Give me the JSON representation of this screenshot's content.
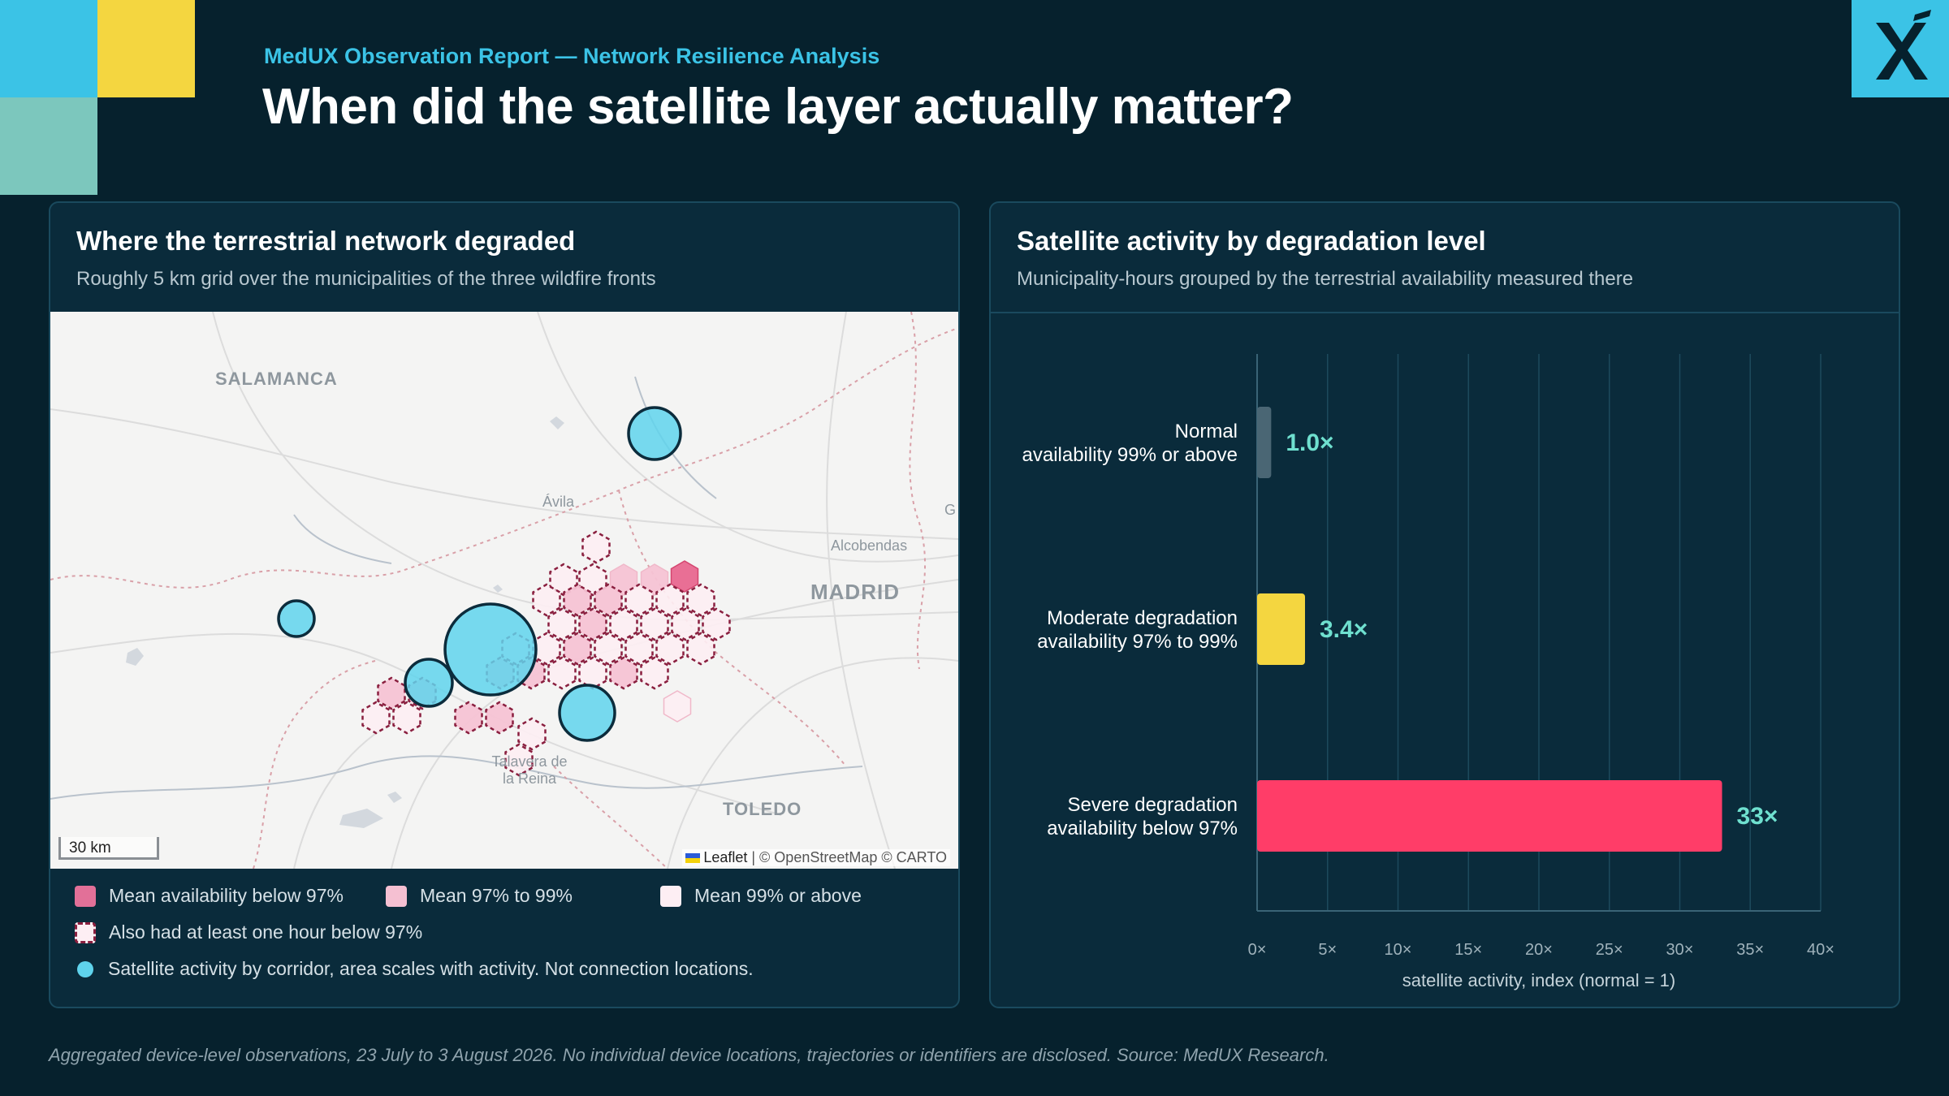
{
  "header": {
    "eyebrow": "MedUX Observation Report — Network Resilience Analysis",
    "title": "When did the satellite layer actually matter?"
  },
  "colors": {
    "background": "#06212d",
    "panel": "#0a2b3b",
    "accent_cyan": "#3bc3e6",
    "accent_yellow": "#f4d640",
    "accent_teal": "#7cc7bd",
    "severe": "#ff3d68",
    "moderate": "#f4d640",
    "normal": "#4a6674",
    "value_label": "#6fe0cf"
  },
  "map_panel": {
    "title": "Where the terrestrial network degraded",
    "subtitle": "Roughly 5 km grid over the municipalities of the three wildfire fronts",
    "place_labels": {
      "salamanca": "SALAMANCA",
      "avila": "Ávila",
      "alcobendas": "Alcobendas",
      "madrid": "MADRID",
      "g": "G",
      "talavera_1": "Talavera de",
      "talavera_2": "la Reina",
      "toledo": "TOLEDO"
    },
    "scale": "30 km",
    "attribution_leaflet": "Leaflet",
    "attribution_rest": " | © OpenStreetMap © CARTO",
    "legend": {
      "below_97": "Mean availability below 97%",
      "between": "Mean 97% to 99%",
      "above_99": "Mean 99% or above",
      "dashed": "Also had at least one hour below 97%",
      "satellite": "Satellite activity by corridor, area scales with activity. Not connection locations."
    }
  },
  "chart_panel": {
    "title": "Satellite activity by degradation level",
    "subtitle": "Municipality-hours grouped by the terrestrial availability measured there"
  },
  "chart_data": {
    "type": "bar",
    "orientation": "horizontal",
    "categories": [
      [
        "Normal",
        "availability 99% or above"
      ],
      [
        "Moderate degradation",
        "availability 97% to 99%"
      ],
      [
        "Severe degradation",
        "availability below 97%"
      ]
    ],
    "values": [
      1.0,
      3.4,
      33
    ],
    "value_labels": [
      "1.0×",
      "3.4×",
      "33×"
    ],
    "bar_colors": [
      "#4a6674",
      "#f4d640",
      "#ff3d68"
    ],
    "xlim": [
      0,
      40
    ],
    "xticks": [
      0,
      5,
      10,
      15,
      20,
      25,
      30,
      35,
      40
    ],
    "xtick_labels": [
      "0×",
      "5×",
      "10×",
      "15×",
      "20×",
      "25×",
      "30×",
      "35×",
      "40×"
    ],
    "xlabel": "satellite activity, index (normal = 1)",
    "grid": true
  },
  "footer": "Aggregated device-level observations, 23 July to 3 August 2026. No individual device locations, trajectories or identifiers are disclosed. Source: MedUX Research."
}
